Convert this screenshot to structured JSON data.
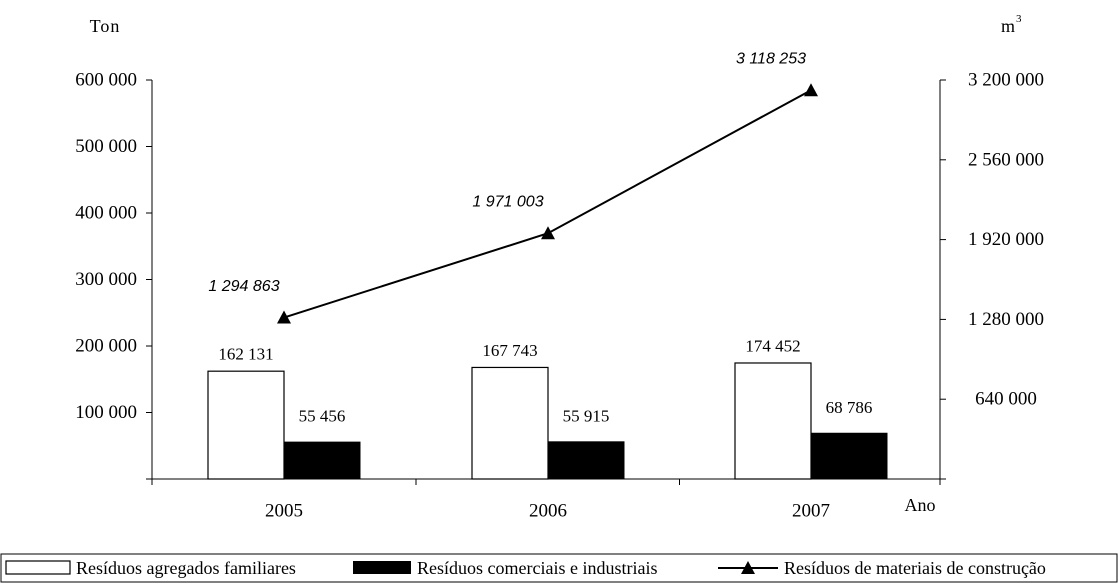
{
  "chart_data": {
    "type": "bar",
    "categories": [
      "2005",
      "2006",
      "2007"
    ],
    "xlabel": "Ano",
    "ylabel_left": "Ton",
    "ylabel_right": "m",
    "ylabel_right_sup": "3",
    "ylim_left": [
      0,
      600000
    ],
    "ylim_right": [
      0,
      3200000
    ],
    "left_ticks": [
      {
        "value": 100000,
        "label": "100 000"
      },
      {
        "value": 200000,
        "label": "200 000"
      },
      {
        "value": 300000,
        "label": "300 000"
      },
      {
        "value": 400000,
        "label": "400 000"
      },
      {
        "value": 500000,
        "label": "500 000"
      },
      {
        "value": 600000,
        "label": "600 000"
      }
    ],
    "right_ticks": [
      {
        "value": 640000,
        "label": "640 000"
      },
      {
        "value": 1280000,
        "label": "1 280 000"
      },
      {
        "value": 1920000,
        "label": "1 920 000"
      },
      {
        "value": 2560000,
        "label": "2 560 000"
      },
      {
        "value": 3200000,
        "label": "3 200 000"
      }
    ],
    "series": [
      {
        "name": "Resíduos agregados familiares",
        "kind": "bar",
        "axis": "left",
        "fill": "#ffffff",
        "values": [
          162131,
          167743,
          174452
        ],
        "labels": [
          "162 131",
          "167 743",
          "174 452"
        ]
      },
      {
        "name": "Resíduos comerciais e industriais",
        "kind": "bar",
        "axis": "left",
        "fill": "#000000",
        "values": [
          55456,
          55915,
          68786
        ],
        "labels": [
          "55 456",
          "55 915",
          "68 786"
        ]
      },
      {
        "name": "Resíduos de materiais de construção",
        "kind": "line",
        "axis": "right",
        "marker": "triangle",
        "values": [
          1294863,
          1971003,
          3118253
        ],
        "labels": [
          "1 294 863",
          "1 971 003",
          "3 118 253"
        ]
      }
    ],
    "grid": false,
    "legend": "bottom"
  }
}
